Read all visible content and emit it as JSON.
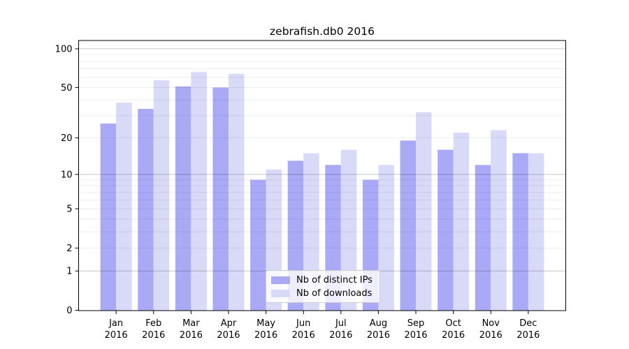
{
  "chart_data": {
    "type": "bar",
    "title": "zebrafish.db0 2016",
    "categories": [
      "Jan",
      "Feb",
      "Mar",
      "Apr",
      "May",
      "Jun",
      "Jul",
      "Aug",
      "Sep",
      "Oct",
      "Nov",
      "Dec"
    ],
    "year_label": "2016",
    "series": [
      {
        "name": "Nb of distinct IPs",
        "color": "#a9a9f6",
        "values": [
          26,
          34,
          51,
          50,
          9,
          13,
          12,
          9,
          19,
          16,
          12,
          15
        ]
      },
      {
        "name": "Nb of downloads",
        "color": "#d9d9f8",
        "values": [
          38,
          57,
          66,
          64,
          11,
          15,
          16,
          12,
          32,
          22,
          23,
          15
        ]
      }
    ],
    "xlabel": "",
    "ylabel": "",
    "y_scale": "log1p",
    "ylim": [
      0,
      116
    ],
    "y_ticks": [
      100,
      50,
      20,
      10,
      5,
      2,
      1,
      0
    ],
    "y_major_gridlines": [
      1,
      10,
      100
    ],
    "y_minor_gridlines": [
      2,
      3,
      4,
      5,
      6,
      7,
      8,
      9,
      20,
      30,
      40,
      50,
      60,
      70,
      80,
      90
    ],
    "grid": true,
    "legend_position": "lower center"
  }
}
